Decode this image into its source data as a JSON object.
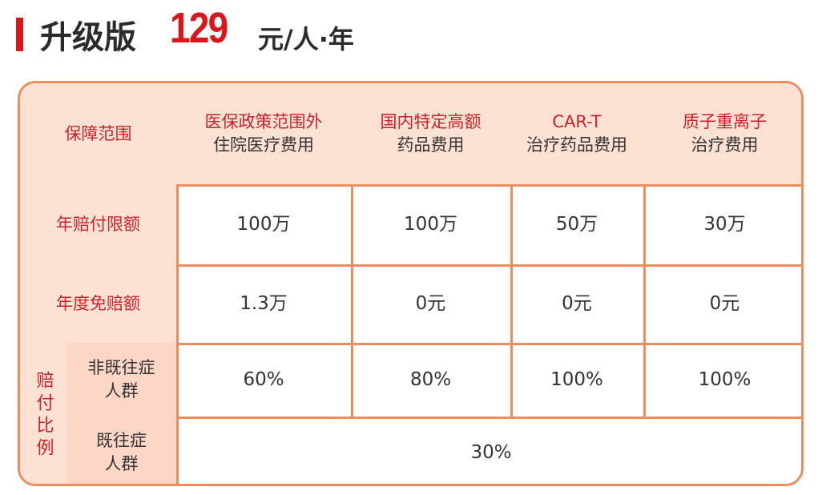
{
  "title": {
    "prefix": "升级版",
    "price": "129",
    "unit": "元/人·年"
  },
  "colors": {
    "accent": "#d9161c",
    "border": "#ea8d5f",
    "header_bg": "#fde2d4",
    "label_red": "#c8232a"
  },
  "table": {
    "corner": "保障范围",
    "columns": [
      {
        "line1": "医保政策范围外",
        "line2": "住院医疗费用"
      },
      {
        "line1": "国内特定高额",
        "line2": "药品费用"
      },
      {
        "line1": "CAR-T",
        "line2": "治疗药品费用"
      },
      {
        "line1": "质子重离子",
        "line2": "治疗费用"
      }
    ],
    "rows": [
      {
        "label": "年赔付限额",
        "values": [
          "100万",
          "100万",
          "50万",
          "30万"
        ]
      },
      {
        "label": "年度免赔额",
        "values": [
          "1.3万",
          "0元",
          "0元",
          "0元"
        ]
      }
    ],
    "ratio": {
      "group_label": "赔付比例",
      "non_preexisting": {
        "line1": "非既往症",
        "line2": "人群",
        "values": [
          "60%",
          "80%",
          "100%",
          "100%"
        ]
      },
      "preexisting": {
        "line1": "既往症",
        "line2": "人群",
        "value": "30%"
      }
    }
  }
}
